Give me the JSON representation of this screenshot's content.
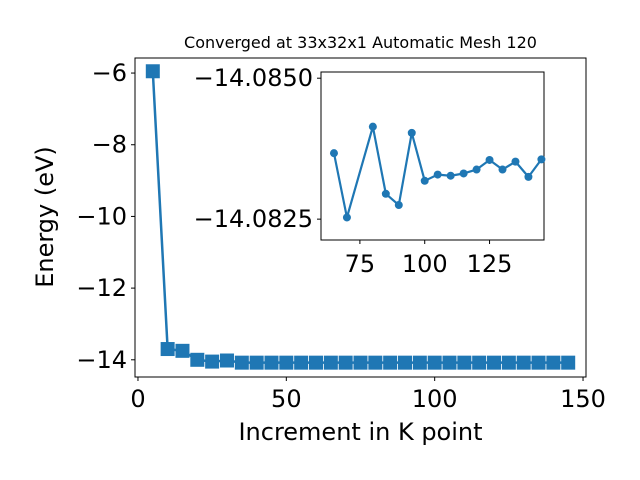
{
  "chart_data": [
    {
      "type": "line",
      "title": "Converged at 33x32x1 Automatic Mesh 120",
      "xlabel": "Increment in K point",
      "ylabel": "Energy (eV)",
      "xlim": [
        -1,
        151
      ],
      "ylim": [
        -14.48,
        -5.58
      ],
      "xticks": [
        0,
        50,
        100,
        150
      ],
      "xtick_labels": [
        "0",
        "50",
        "100",
        "150"
      ],
      "yticks": [
        -14,
        -12,
        -10,
        -8,
        -6
      ],
      "ytick_labels": [
        "−14",
        "−12",
        "−10",
        "−8",
        "−6"
      ],
      "marker": "square",
      "color": "#1f77b4",
      "grid": false,
      "series": [
        {
          "x": [
            5,
            10,
            15,
            20,
            25,
            30,
            35,
            40,
            45,
            50,
            55,
            60,
            65,
            70,
            75,
            80,
            85,
            90,
            95,
            100,
            105,
            110,
            115,
            120,
            125,
            130,
            135,
            140,
            145
          ],
          "values": [
            -5.95,
            -13.7,
            -13.75,
            -14.0,
            -14.05,
            -14.02,
            -14.08,
            -14.08,
            -14.08,
            -14.08,
            -14.08,
            -14.08,
            -14.08,
            -14.08,
            -14.08,
            -14.08,
            -14.08,
            -14.08,
            -14.08,
            -14.08,
            -14.08,
            -14.08,
            -14.08,
            -14.08,
            -14.08,
            -14.08,
            -14.08,
            -14.08,
            -14.08
          ]
        }
      ]
    },
    {
      "type": "line",
      "inset": true,
      "xlim": [
        60,
        146
      ],
      "ylim": [
        -14.08213,
        -14.08511
      ],
      "xticks": [
        75,
        100,
        125
      ],
      "xtick_labels": [
        "75",
        "100",
        "125"
      ],
      "yticks": [
        -14.085,
        -14.0825
      ],
      "ytick_labels": [
        "−14.0850",
        "−14.0825"
      ],
      "marker": "circle",
      "color": "#1f77b4",
      "grid": false,
      "series": [
        {
          "x": [
            65,
            70,
            80,
            85,
            90,
            95,
            100,
            105,
            110,
            115,
            120,
            125,
            130,
            135,
            140,
            145
          ],
          "values": [
            -14.08367,
            -14.08253,
            -14.08414,
            -14.08295,
            -14.08275,
            -14.08403,
            -14.08318,
            -14.08329,
            -14.08327,
            -14.08331,
            -14.08338,
            -14.08355,
            -14.08338,
            -14.08352,
            -14.08325,
            -14.08356
          ]
        }
      ]
    }
  ]
}
